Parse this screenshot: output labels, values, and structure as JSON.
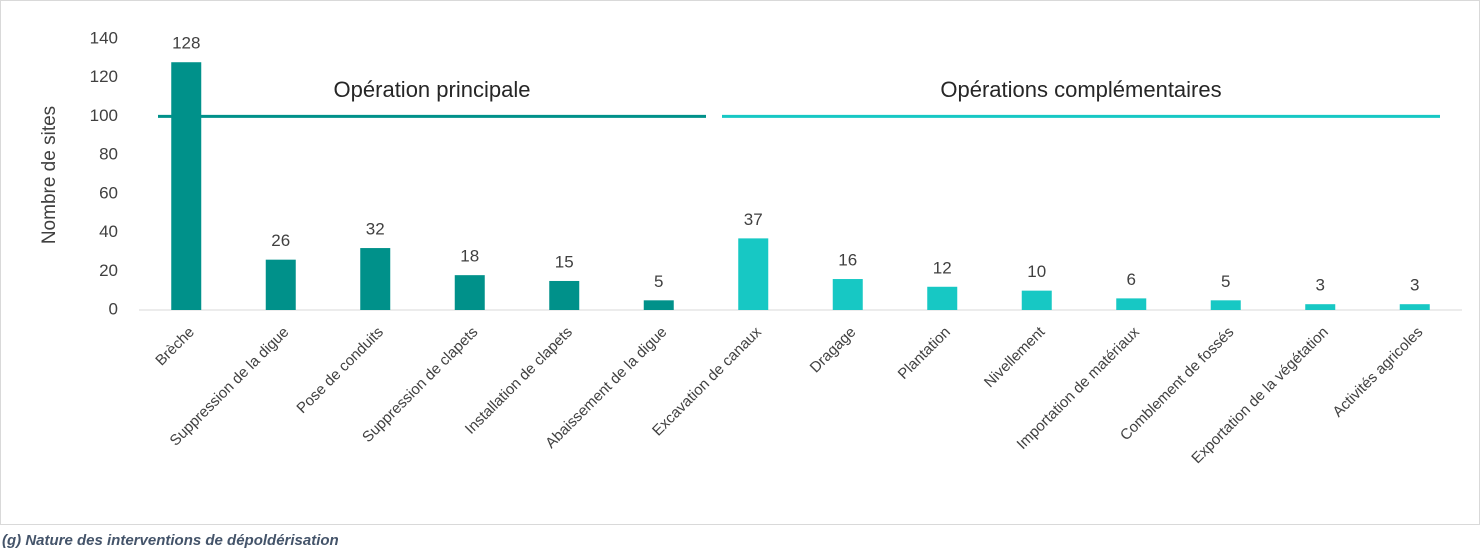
{
  "chart_data": {
    "type": "bar",
    "caption": "(g) Nature des interventions de dépoldérisation",
    "y_label": "Nombre de sites",
    "categories": [
      "Brèche",
      "Suppression de la digue",
      "Pose de conduits",
      "Suppression de clapets",
      "Installation de clapets",
      "Abaissement de la digue",
      "Excavation de canaux",
      "Dragage",
      "Plantation",
      "Nivellement",
      "Importation de matériaux",
      "Comblement de fossés",
      "Exportation de la végétation",
      "Activités agricoles"
    ],
    "values": [
      128,
      26,
      32,
      18,
      15,
      5,
      37,
      16,
      12,
      10,
      6,
      5,
      3,
      3
    ],
    "groups": [
      {
        "label": "Opération principale",
        "color": "#00918a",
        "start": 0,
        "end": 5,
        "line_at": 100
      },
      {
        "label": "Opérations complémentaires",
        "color": "#17c8c4",
        "start": 6,
        "end": 13,
        "line_at": 100
      }
    ],
    "ylim": [
      0,
      140
    ],
    "yticks": [
      0,
      20,
      40,
      60,
      80,
      100,
      120,
      140
    ],
    "grid": false
  }
}
